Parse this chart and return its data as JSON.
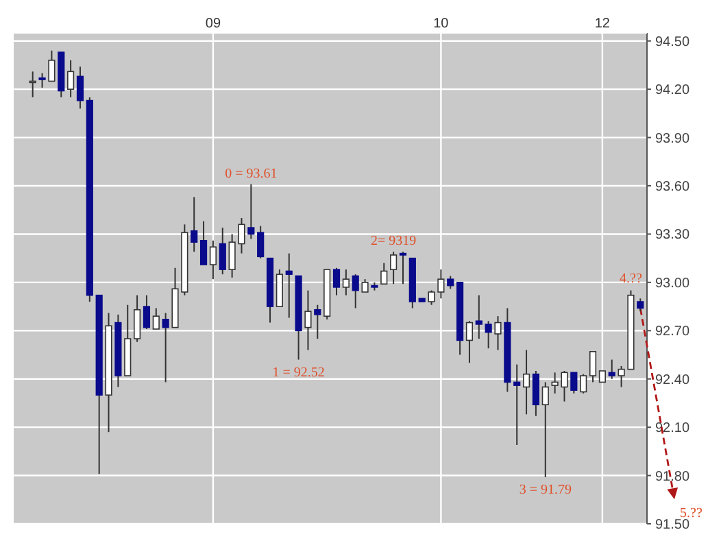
{
  "chart_data": {
    "type": "candlestick",
    "categories": [
      null,
      null,
      null,
      null,
      null,
      null,
      null,
      null,
      null,
      null,
      null,
      null,
      null,
      null,
      null,
      null,
      null,
      null,
      null,
      "09",
      null,
      null,
      null,
      null,
      null,
      null,
      null,
      null,
      null,
      null,
      null,
      null,
      null,
      null,
      null,
      null,
      null,
      null,
      null,
      null,
      null,
      null,
      null,
      "10",
      null,
      null,
      null,
      null,
      null,
      null,
      null,
      null,
      null,
      null,
      null,
      null,
      null,
      null,
      null,
      null,
      "12",
      null,
      null,
      null,
      null
    ],
    "ohlc": [
      [
        94.25,
        94.31,
        94.15,
        94.25
      ],
      [
        94.27,
        94.3,
        94.21,
        94.26
      ],
      [
        94.25,
        94.44,
        94.25,
        94.38
      ],
      [
        94.43,
        94.43,
        94.15,
        94.19
      ],
      [
        94.2,
        94.38,
        94.15,
        94.31
      ],
      [
        94.28,
        94.34,
        94.08,
        94.13
      ],
      [
        94.13,
        94.15,
        92.88,
        92.92
      ],
      [
        92.92,
        92.92,
        91.81,
        92.3
      ],
      [
        92.3,
        92.81,
        92.07,
        92.73
      ],
      [
        92.75,
        92.8,
        92.35,
        92.42
      ],
      [
        92.42,
        92.86,
        92.42,
        92.65
      ],
      [
        92.65,
        92.92,
        92.63,
        92.83
      ],
      [
        92.85,
        92.92,
        92.71,
        92.72
      ],
      [
        92.71,
        92.84,
        92.71,
        92.79
      ],
      [
        92.77,
        92.81,
        92.38,
        92.72
      ],
      [
        92.72,
        93.09,
        92.72,
        92.96
      ],
      [
        92.94,
        93.36,
        92.92,
        93.31
      ],
      [
        93.32,
        93.53,
        93.19,
        93.25
      ],
      [
        93.26,
        93.38,
        93.11,
        93.11
      ],
      [
        93.11,
        93.26,
        93.02,
        93.22
      ],
      [
        93.24,
        93.34,
        93.05,
        93.08
      ],
      [
        93.08,
        93.3,
        93.03,
        93.25
      ],
      [
        93.24,
        93.4,
        93.18,
        93.36
      ],
      [
        93.34,
        93.61,
        93.27,
        93.3
      ],
      [
        93.31,
        93.35,
        93.15,
        93.16
      ],
      [
        93.15,
        93.15,
        92.75,
        92.85
      ],
      [
        92.85,
        93.08,
        92.85,
        93.05
      ],
      [
        93.07,
        93.18,
        92.78,
        93.05
      ],
      [
        93.04,
        93.04,
        92.52,
        92.7
      ],
      [
        92.72,
        92.95,
        92.58,
        92.82
      ],
      [
        92.83,
        92.86,
        92.65,
        92.8
      ],
      [
        92.79,
        93.08,
        92.77,
        93.08
      ],
      [
        93.08,
        93.09,
        92.92,
        92.97
      ],
      [
        92.97,
        93.08,
        92.92,
        93.02
      ],
      [
        93.04,
        93.05,
        92.84,
        92.95
      ],
      [
        92.94,
        93.02,
        92.94,
        93.0
      ],
      [
        92.98,
        93.0,
        92.95,
        92.97
      ],
      [
        92.99,
        93.12,
        92.99,
        93.07
      ],
      [
        93.08,
        93.19,
        92.99,
        93.17
      ],
      [
        93.18,
        93.19,
        92.99,
        93.17
      ],
      [
        93.15,
        93.15,
        92.84,
        92.88
      ],
      [
        92.9,
        92.9,
        92.88,
        92.88
      ],
      [
        92.88,
        92.95,
        92.86,
        92.94
      ],
      [
        92.94,
        93.08,
        92.9,
        93.02
      ],
      [
        93.02,
        93.04,
        92.96,
        92.98
      ],
      [
        93.0,
        93.0,
        92.55,
        92.64
      ],
      [
        92.64,
        92.76,
        92.5,
        92.75
      ],
      [
        92.76,
        92.92,
        92.65,
        92.74
      ],
      [
        92.74,
        92.76,
        92.59,
        92.69
      ],
      [
        92.68,
        92.79,
        92.58,
        92.75
      ],
      [
        92.75,
        92.84,
        92.32,
        92.38
      ],
      [
        92.38,
        92.49,
        91.99,
        92.36
      ],
      [
        92.35,
        92.58,
        92.18,
        92.43
      ],
      [
        92.43,
        92.45,
        92.17,
        92.24
      ],
      [
        92.24,
        92.38,
        91.79,
        92.35
      ],
      [
        92.36,
        92.44,
        92.31,
        92.38
      ],
      [
        92.35,
        92.45,
        92.26,
        92.44
      ],
      [
        92.44,
        92.44,
        92.31,
        92.33
      ],
      [
        92.32,
        92.43,
        92.31,
        92.42
      ],
      [
        92.42,
        92.57,
        92.38,
        92.57
      ],
      [
        92.38,
        92.45,
        92.38,
        92.45
      ],
      [
        92.44,
        92.52,
        92.4,
        92.42
      ],
      [
        92.42,
        92.48,
        92.35,
        92.46
      ],
      [
        92.46,
        92.95,
        92.46,
        92.92
      ],
      [
        92.88,
        92.9,
        92.82,
        92.84
      ]
    ],
    "ylim": [
      91.5,
      94.55
    ],
    "yticks": [
      {
        "value": 91.5,
        "label": "91.50"
      },
      {
        "value": 91.8,
        "label": "91.80"
      },
      {
        "value": 92.1,
        "label": "92.10"
      },
      {
        "value": 92.4,
        "label": "92.40"
      },
      {
        "value": 92.7,
        "label": "92.70"
      },
      {
        "value": 93.0,
        "label": "93.00"
      },
      {
        "value": 93.3,
        "label": "93.30"
      },
      {
        "value": 93.6,
        "label": "93.60"
      },
      {
        "value": 93.9,
        "label": "93.90"
      },
      {
        "value": 94.2,
        "label": "94.20"
      },
      {
        "value": 94.5,
        "label": "94.50"
      }
    ],
    "grid": true,
    "annotations": [
      {
        "text": "0 = 93.61",
        "y": 93.61
      },
      {
        "text": "1 = 92.52",
        "y": 92.52
      },
      {
        "text": "2= 9319",
        "y": 93.19
      },
      {
        "text": "3 = 91.79",
        "y": 91.79
      },
      "4.??",
      "5.??"
    ]
  }
}
